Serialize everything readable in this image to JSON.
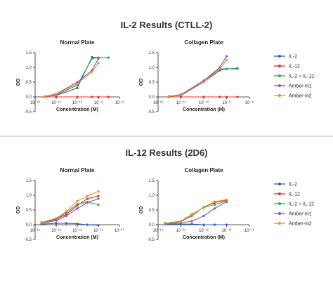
{
  "sections": [
    {
      "title": "IL-2 Results (CTLL-2)"
    },
    {
      "title": "IL-12 Results (2D6)"
    }
  ],
  "legends": [
    [
      "IL-2",
      "IL-12",
      "IL-2 + IL-12",
      "Amber-m1",
      "Amber-m2"
    ],
    [
      "IL-2",
      "IL-12",
      "IL-2 + IL-12",
      "Amber-m1",
      "Amber-m2"
    ]
  ],
  "colors": {
    "IL-2": "#2e5fad",
    "IL-12": "#e2312a",
    "IL-2 + IL-12": "#35a84a",
    "Amber-m1": "#8a4fbf",
    "Amber-m2": "#f08a24",
    "divider": "#c8c8c8"
  },
  "chart_data": [
    {
      "type": "line",
      "title": "Normal Plate",
      "xlabel": "Concentration (M)",
      "ylabel": "OD",
      "x_scale": "log",
      "xlim": [
        1e-12,
        1e-08
      ],
      "ylim": [
        -0.5,
        1.5
      ],
      "x_tick_labels": [
        "10⁻¹²",
        "10⁻¹¹",
        "10⁻¹⁰",
        "10⁻⁹",
        "10⁻⁸"
      ],
      "y_tick_labels": [
        "-0.5",
        "0.0",
        "0.5",
        "1.0",
        "1.5"
      ],
      "series": [
        {
          "name": "IL-2",
          "x": [
            3e-12,
            1e-11,
            1e-10,
            5e-10,
            1e-09,
            3e-09
          ],
          "y": [
            0.02,
            0.05,
            0.3,
            1.35,
            1.33,
            1.33
          ]
        },
        {
          "name": "IL-12",
          "x": [
            3e-12,
            1e-11,
            1e-10,
            5e-10,
            1e-09,
            3e-09
          ],
          "y": [
            0.0,
            0.0,
            0.0,
            0.0,
            0.0,
            0.0
          ]
        },
        {
          "name": "IL-2 + IL-12",
          "x": [
            3e-12,
            1e-11,
            1e-10,
            5e-10,
            1e-09,
            3e-09
          ],
          "y": [
            0.02,
            0.06,
            0.4,
            1.3,
            1.33,
            1.33
          ]
        },
        {
          "name": "Amber-m1",
          "x": [
            3e-12,
            1e-11,
            1e-10,
            5e-10,
            1e-09
          ],
          "y": [
            0.02,
            0.1,
            0.5,
            0.9,
            1.3
          ]
        },
        {
          "name": "Amber-m2",
          "x": [
            3e-12,
            1e-11,
            1e-10,
            5e-10,
            1e-09
          ],
          "y": [
            0.02,
            0.08,
            0.45,
            0.85,
            1.15
          ]
        }
      ]
    },
    {
      "type": "line",
      "title": "Collagen Plate",
      "xlabel": "Concentration (M)",
      "ylabel": "OD",
      "x_scale": "log",
      "xlim": [
        1e-12,
        1e-08
      ],
      "ylim": [
        -0.5,
        1.5
      ],
      "x_tick_labels": [
        "10⁻¹²",
        "10⁻¹¹",
        "10⁻¹⁰",
        "10⁻⁹",
        "10⁻⁸"
      ],
      "y_tick_labels": [
        "-0.5",
        "0.0",
        "0.5",
        "1.0",
        "1.5"
      ],
      "series": [
        {
          "name": "IL-2",
          "x": [
            3e-12,
            1e-11,
            1e-10,
            5e-10,
            1e-09,
            3e-09
          ],
          "y": [
            0.02,
            0.05,
            0.5,
            0.9,
            0.95,
            0.97
          ]
        },
        {
          "name": "IL-12",
          "x": [
            3e-12,
            1e-11,
            1e-10,
            5e-10,
            1e-09,
            3e-09
          ],
          "y": [
            0.0,
            0.0,
            0.0,
            0.0,
            0.0,
            0.0
          ]
        },
        {
          "name": "IL-2 + IL-12",
          "x": [
            3e-12,
            1e-11,
            1e-10,
            5e-10,
            1e-09,
            3e-09
          ],
          "y": [
            0.02,
            0.06,
            0.55,
            0.95,
            0.95,
            0.95
          ]
        },
        {
          "name": "Amber-m1",
          "x": [
            3e-12,
            1e-11,
            1e-10,
            5e-10,
            1e-09
          ],
          "y": [
            0.02,
            0.08,
            0.55,
            1.0,
            1.38
          ]
        },
        {
          "name": "Amber-m2",
          "x": [
            3e-12,
            1e-11,
            1e-10,
            5e-10,
            1e-09
          ],
          "y": [
            0.02,
            0.07,
            0.5,
            0.95,
            1.25
          ]
        }
      ]
    },
    {
      "type": "line",
      "title": "Normal Plate",
      "xlabel": "Concentration (M)",
      "ylabel": "OD",
      "x_scale": "log",
      "xlim": [
        1e-14,
        1e-10
      ],
      "ylim": [
        -0.5,
        1.5
      ],
      "x_tick_labels": [
        "10⁻¹⁴",
        "10⁻¹³",
        "10⁻¹²",
        "10⁻¹¹",
        "10⁻¹⁰"
      ],
      "y_tick_labels": [
        "-0.5",
        "0.0",
        "0.5",
        "1.0",
        "1.5"
      ],
      "series": [
        {
          "name": "IL-2",
          "x": [
            2e-14,
            1e-13,
            3e-13,
            1e-12,
            3e-12,
            1e-11
          ],
          "y": [
            0.02,
            0.05,
            0.05,
            0.03,
            0.0,
            -0.02
          ]
        },
        {
          "name": "IL-12",
          "x": [
            2e-14,
            1e-13,
            3e-13,
            1e-12,
            3e-12,
            1e-11
          ],
          "y": [
            0.05,
            0.18,
            0.35,
            0.65,
            0.88,
            0.97
          ]
        },
        {
          "name": "IL-2 + IL-12",
          "x": [
            2e-14,
            1e-13,
            3e-13,
            1e-12,
            3e-12,
            1e-11
          ],
          "y": [
            0.05,
            0.2,
            0.4,
            0.7,
            0.77,
            0.68
          ]
        },
        {
          "name": "Amber-m1",
          "x": [
            2e-14,
            1e-13,
            3e-13,
            1e-12,
            3e-12,
            1e-11
          ],
          "y": [
            0.05,
            0.14,
            0.3,
            0.55,
            0.75,
            0.88
          ]
        },
        {
          "name": "Amber-m2",
          "x": [
            2e-14,
            1e-13,
            3e-13,
            1e-12,
            3e-12,
            1e-11
          ],
          "y": [
            0.08,
            0.22,
            0.45,
            0.8,
            0.97,
            1.13
          ]
        }
      ]
    },
    {
      "type": "line",
      "title": "Collagen Plate",
      "xlabel": "Concentration (M)",
      "ylabel": "OD",
      "x_scale": "log",
      "xlim": [
        1e-14,
        1e-10
      ],
      "ylim": [
        -0.5,
        1.5
      ],
      "x_tick_labels": [
        "10⁻¹⁴",
        "10⁻¹³",
        "10⁻¹²",
        "10⁻¹¹",
        "10⁻¹⁰"
      ],
      "y_tick_labels": [
        "-0.5",
        "0.0",
        "0.5",
        "1.0",
        "1.5"
      ],
      "series": [
        {
          "name": "IL-2",
          "x": [
            2e-14,
            1e-13,
            3e-13,
            1e-12,
            3e-12,
            1e-11
          ],
          "y": [
            0.02,
            0.02,
            0.02,
            0.0,
            0.0,
            0.0
          ]
        },
        {
          "name": "IL-12",
          "x": [
            2e-14,
            1e-13,
            3e-13,
            1e-12,
            3e-12,
            1e-11
          ],
          "y": [
            0.05,
            0.1,
            0.3,
            0.6,
            0.75,
            0.83
          ]
        },
        {
          "name": "IL-2 + IL-12",
          "x": [
            2e-14,
            1e-13,
            3e-13,
            1e-12,
            3e-12,
            1e-11
          ],
          "y": [
            0.05,
            0.12,
            0.35,
            0.58,
            0.68,
            0.8
          ]
        },
        {
          "name": "Amber-m1",
          "x": [
            2e-14,
            1e-13,
            3e-13,
            1e-12,
            3e-12,
            1e-11
          ],
          "y": [
            0.02,
            0.06,
            0.12,
            0.3,
            0.55,
            0.78
          ]
        },
        {
          "name": "Amber-m2",
          "x": [
            2e-14,
            1e-13,
            3e-13,
            1e-12,
            3e-12,
            1e-11
          ],
          "y": [
            0.04,
            0.1,
            0.32,
            0.6,
            0.78,
            0.85
          ]
        }
      ]
    }
  ]
}
